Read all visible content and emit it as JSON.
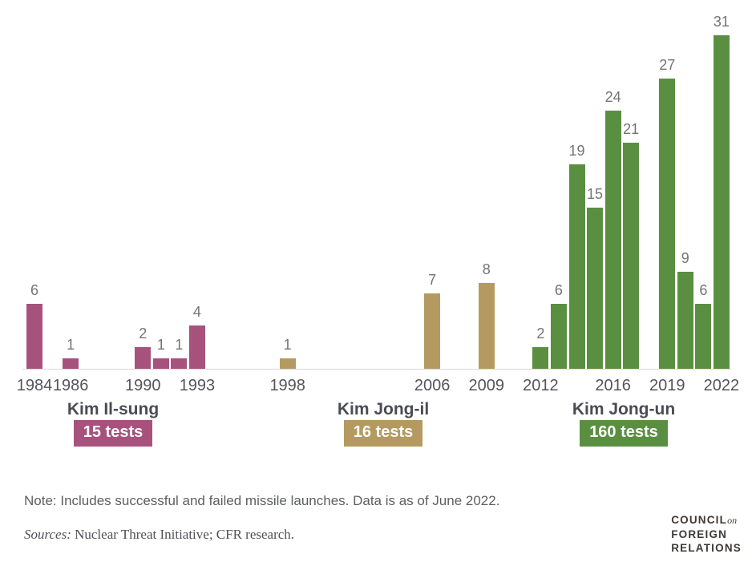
{
  "chart_data": {
    "type": "bar",
    "title": "",
    "xlabel": "",
    "ylabel": "",
    "x_range": [
      1984,
      2022
    ],
    "ylim": [
      0,
      31
    ],
    "grid": false,
    "legend_position": "below-groups",
    "value_labels_shown": true,
    "x_ticks": [
      1984,
      1986,
      1990,
      1993,
      1998,
      2006,
      2009,
      2012,
      2016,
      2019,
      2022
    ],
    "groups": [
      {
        "leader": "Kim Il-sung",
        "badge": "15 tests",
        "color": "#a6527d",
        "label_center_x": 141,
        "bars": [
          {
            "year": 1984,
            "value": 6
          },
          {
            "year": 1986,
            "value": 1
          },
          {
            "year": 1990,
            "value": 2
          },
          {
            "year": 1991,
            "value": 1
          },
          {
            "year": 1992,
            "value": 1
          },
          {
            "year": 1993,
            "value": 4
          }
        ]
      },
      {
        "leader": "Kim Jong-il",
        "badge": "16 tests",
        "color": "#b49a60",
        "label_center_x": 478,
        "bars": [
          {
            "year": 1998,
            "value": 1
          },
          {
            "year": 2006,
            "value": 7
          },
          {
            "year": 2009,
            "value": 8
          }
        ]
      },
      {
        "leader": "Kim Jong-un",
        "badge": "160 tests",
        "color": "#5a8f42",
        "label_center_x": 778,
        "bars": [
          {
            "year": 2012,
            "value": 2
          },
          {
            "year": 2013,
            "value": 6
          },
          {
            "year": 2014,
            "value": 19
          },
          {
            "year": 2015,
            "value": 15
          },
          {
            "year": 2016,
            "value": 24
          },
          {
            "year": 2017,
            "value": 21
          },
          {
            "year": 2019,
            "value": 27
          },
          {
            "year": 2020,
            "value": 9
          },
          {
            "year": 2021,
            "value": 6
          },
          {
            "year": 2022,
            "value": 31
          }
        ]
      }
    ]
  },
  "footer": {
    "note": "Note: Includes successful and failed missile launches. Data is as of June 2022.",
    "sources_prefix": "Sources:",
    "sources_text": " Nuclear Threat Initiative; CFR research."
  },
  "logo": {
    "line1": "COUNCIL",
    "line1_script": "on",
    "line2": "FOREIGN",
    "line3": "RELATIONS"
  }
}
